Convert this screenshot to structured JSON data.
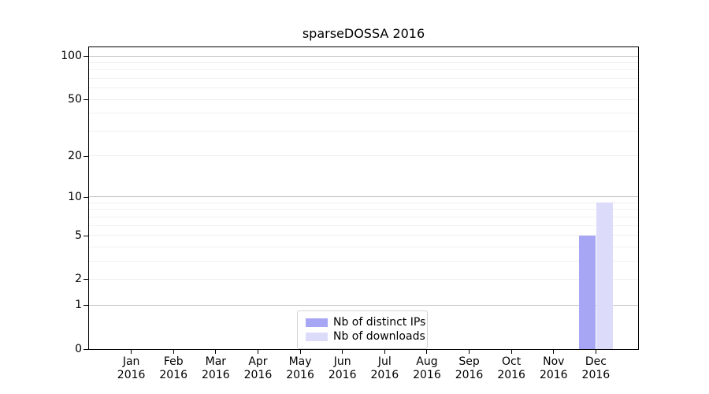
{
  "chart_data": {
    "type": "bar",
    "title": "sparseDOSSA 2016",
    "xlabel": "",
    "ylabel": "",
    "yscale": "log1p",
    "ylim": [
      0,
      115
    ],
    "yticks": [
      0,
      1,
      2,
      5,
      10,
      20,
      50,
      100
    ],
    "grid_major": [
      1,
      10,
      100
    ],
    "grid_minor": [
      2,
      3,
      4,
      5,
      6,
      7,
      8,
      9,
      20,
      30,
      40,
      50,
      60,
      70,
      80,
      90
    ],
    "legend_position": "lower center",
    "categories": [
      {
        "month": "Jan",
        "year": "2016"
      },
      {
        "month": "Feb",
        "year": "2016"
      },
      {
        "month": "Mar",
        "year": "2016"
      },
      {
        "month": "Apr",
        "year": "2016"
      },
      {
        "month": "May",
        "year": "2016"
      },
      {
        "month": "Jun",
        "year": "2016"
      },
      {
        "month": "Jul",
        "year": "2016"
      },
      {
        "month": "Aug",
        "year": "2016"
      },
      {
        "month": "Sep",
        "year": "2016"
      },
      {
        "month": "Oct",
        "year": "2016"
      },
      {
        "month": "Nov",
        "year": "2016"
      },
      {
        "month": "Dec",
        "year": "2016"
      }
    ],
    "series": [
      {
        "name": "Nb of distinct IPs",
        "color": "#a6a6f5",
        "values": [
          0,
          0,
          0,
          0,
          0,
          0,
          0,
          0,
          0,
          0,
          0,
          5
        ]
      },
      {
        "name": "Nb of downloads",
        "color": "#dcdcfa",
        "values": [
          0,
          0,
          0,
          0,
          0,
          0,
          0,
          0,
          0,
          0,
          0,
          9
        ]
      }
    ],
    "colors": {
      "grid_major": "#c8c8c8",
      "grid_minor": "#f0f0f0",
      "spine": "#000000",
      "background": "#ffffff"
    }
  }
}
